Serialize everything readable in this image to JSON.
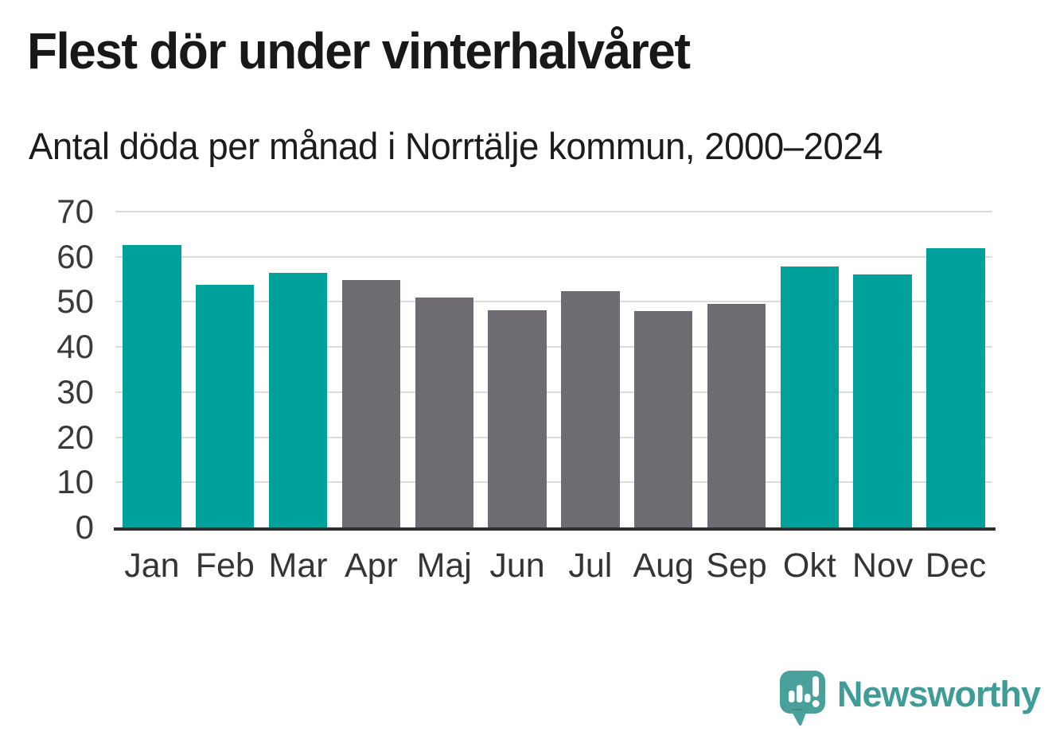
{
  "header": {
    "title": "Flest dör under vinterhalvåret",
    "subtitle": "Antal döda per månad i Norrtälje kommun, 2000–2024"
  },
  "chart_data": {
    "type": "bar",
    "title": "Flest dör under vinterhalvåret",
    "subtitle": "Antal döda per månad i Norrtälje kommun, 2000–2024",
    "categories": [
      "Jan",
      "Feb",
      "Mar",
      "Apr",
      "Maj",
      "Jun",
      "Jul",
      "Aug",
      "Sep",
      "Okt",
      "Nov",
      "Dec"
    ],
    "values": [
      62.6,
      53.8,
      56.5,
      54.8,
      51.0,
      48.2,
      52.3,
      47.9,
      49.6,
      57.9,
      56.0,
      61.9
    ],
    "bar_colors": [
      "teal",
      "teal",
      "teal",
      "gray",
      "gray",
      "gray",
      "gray",
      "gray",
      "gray",
      "teal",
      "teal",
      "teal"
    ],
    "colors": {
      "teal": "#00A09B",
      "gray": "#6E6B73"
    },
    "highlight_meaning": "winter months (Okt–Mar) teal, summer months (Apr–Sep) gray",
    "xlabel": "",
    "ylabel": "",
    "ylim": [
      0,
      70
    ],
    "yticks": [
      0,
      10,
      20,
      30,
      40,
      50,
      60,
      70
    ],
    "grid": "horizontal",
    "legend": "none",
    "grid_color": "#dcdcdc",
    "axis_color": "#2e2e2e",
    "tick_label_color": "#3a3a3a"
  },
  "branding": {
    "logo_text": "Newsworthy",
    "logo_text_color": "#3F9C96",
    "logo_bubble_color": "#4AA19B",
    "logo_icon": "speech-bubble-with-bar-chart-and-exclamation"
  }
}
